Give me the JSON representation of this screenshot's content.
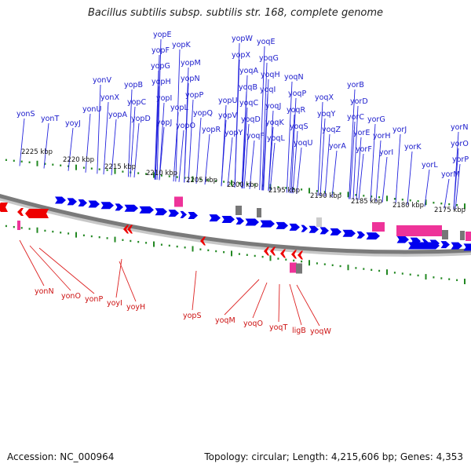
{
  "title": "Bacillus subtilis subsp. subtilis str. 168, complete genome",
  "footer": {
    "accession": "Accession: NC_000964",
    "summary": "Topology: circular; Length: 4,215,606 bp; Genes: 4,353"
  },
  "colors": {
    "forward_gene": "#0000ee",
    "reverse_gene": "#ee0000",
    "rna_gene": "#ee3399",
    "other_feature": "#777777",
    "backbone": "#7a7a7a",
    "tick": "#228822"
  },
  "scale_labels": [
    "2225 kbp",
    "2220 kbp",
    "2215 kbp",
    "2210 kbp",
    "2205 kbp",
    "2200 kbp",
    "2195 kbp",
    "2190 kbp",
    "2185 kbp",
    "2180 kbp",
    "2175 kbp"
  ],
  "top_labels": [
    "yonS",
    "yonT",
    "yoyJ",
    "yonU",
    "yonV",
    "yonX",
    "yopA",
    "yopB",
    "yopC",
    "yopD",
    "yopE",
    "yopF",
    "yopG",
    "yopH",
    "yopI",
    "yopJ",
    "yopK",
    "yopM",
    "yopN",
    "yopL",
    "yopO",
    "yopP",
    "yopQ",
    "yopR",
    "yopW",
    "yopX",
    "yopU",
    "yopV",
    "yopY",
    "yoqE",
    "yoqG",
    "yoqA",
    "yoqB",
    "yoqC",
    "yoqD",
    "yoqF",
    "yoqH",
    "yoqI",
    "yoqJ",
    "yoqK",
    "yoqL",
    "yoqN",
    "yoqP",
    "yoqR",
    "yoqS",
    "yoqU",
    "yoqX",
    "yoqY",
    "yoqZ",
    "yorA",
    "yorB",
    "yorD",
    "yorC",
    "yorE",
    "yorF",
    "yorG",
    "yorH",
    "yorI",
    "yorJ",
    "yorK",
    "yorL",
    "yorM",
    "yorN",
    "yorO",
    "yorP"
  ],
  "bottom_labels": [
    "yonN",
    "yonO",
    "yonP",
    "yoyI",
    "yoyH",
    "yopS",
    "yoqM",
    "yoqO",
    "yoqT",
    "ligB",
    "yoqW"
  ]
}
